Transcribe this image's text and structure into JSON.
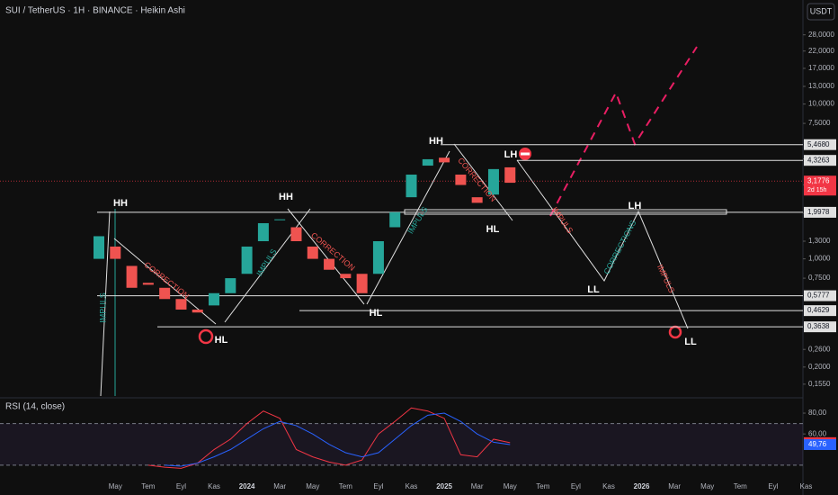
{
  "chart_data": {
    "type": "candlestick",
    "log_scale": true,
    "title": "SUI / TetherUS · 1H · BINANCE · Heikin Ashi",
    "currency_button": "USDT",
    "categories": [
      null,
      "May",
      null,
      "Tem",
      null,
      "Eyl",
      null,
      "Kas",
      null,
      "2024",
      null,
      "Mar",
      null,
      "May",
      null,
      "Tem",
      null,
      "Eyl",
      null,
      "Kas",
      null,
      "2025",
      null,
      "Mar",
      null,
      "May",
      null,
      "Tem",
      null,
      "Eyl",
      null,
      "Kas",
      null,
      "2026",
      null,
      "Mar",
      null,
      "May",
      null,
      "Tem",
      null,
      "Eyl",
      null,
      "Kas"
    ],
    "open": [
      1.0,
      1.2,
      0.9,
      0.7,
      0.65,
      0.55,
      0.47,
      0.5,
      0.6,
      0.8,
      1.3,
      1.8,
      1.6,
      1.2,
      1.0,
      0.8,
      0.8,
      0.8,
      1.6,
      2.5,
      4.0,
      4.5,
      3.5,
      2.5,
      2.6,
      3.9,
      null,
      null,
      null,
      null,
      null,
      null,
      null,
      null,
      null,
      null,
      null,
      null,
      null,
      null,
      null,
      null,
      null,
      null
    ],
    "close": [
      1.4,
      1.0,
      0.65,
      0.68,
      0.55,
      0.47,
      0.45,
      0.6,
      0.75,
      1.2,
      1.7,
      1.8,
      1.3,
      1.0,
      0.85,
      0.75,
      0.6,
      1.3,
      2.0,
      3.5,
      4.4,
      4.2,
      3.0,
      2.3,
      3.8,
      3.1,
      null,
      null,
      null,
      null,
      null,
      null,
      null,
      null,
      null,
      null,
      null,
      null,
      null,
      null,
      null,
      null,
      null,
      null
    ],
    "up_color": "#26a69a",
    "down_color": "#ef5350",
    "ylim": [
      0.13,
      47
    ],
    "yticks": [
      {
        "value": 28,
        "label": "28,0000"
      },
      {
        "value": 22,
        "label": "22,0000"
      },
      {
        "value": 17,
        "label": "17,0000"
      },
      {
        "value": 13,
        "label": "13,0000"
      },
      {
        "value": 10,
        "label": "10,0000"
      },
      {
        "value": 7.5,
        "label": "7,5000"
      },
      {
        "value": 4.4147,
        "label": "4,4147"
      },
      {
        "value": 3.0092,
        "label": "3,0092"
      },
      {
        "value": 1.9719,
        "label": "1,9719"
      },
      {
        "value": 1.3,
        "label": "1,3000"
      },
      {
        "value": 1,
        "label": "1,0000"
      },
      {
        "value": 0.75,
        "label": "0,7500"
      },
      {
        "value": 0.26,
        "label": "0,2600"
      },
      {
        "value": 0.2,
        "label": "0,2000"
      },
      {
        "value": 0.155,
        "label": "0,1550"
      }
    ],
    "levels": [
      {
        "value": 5.468,
        "label": "5,4680"
      },
      {
        "value": 4.3263,
        "label": "4,3263"
      },
      {
        "value": 1.9978,
        "label": "1,9978"
      },
      {
        "value": 0.5777,
        "label": "0,5777"
      },
      {
        "value": 0.4629,
        "label": "0,4629"
      },
      {
        "value": 0.3638,
        "label": "0,3638"
      }
    ],
    "last_price": {
      "value": 3.1776,
      "label": "3,1776",
      "countdown": "2d 15h",
      "color": "#f23645"
    },
    "annotations": [
      "HH",
      "HL",
      "HH",
      "HL",
      "HH",
      "LH",
      "HL",
      "LL",
      "LH",
      "LL",
      "IMPULS",
      "CORRECTION",
      "IMPULS",
      "CORRECTION",
      "IMPULS",
      "CORRECTION",
      "IMPULS",
      "CORRECTIONS",
      "IMPULS"
    ],
    "rsi": {
      "title": "RSI (14, close)",
      "ylim": [
        10,
        93
      ],
      "yticks": [
        {
          "value": 80,
          "label": "80,00"
        },
        {
          "value": 60,
          "label": "60,00"
        }
      ],
      "bands": [
        70,
        30
      ],
      "series": [
        {
          "name": "RSI",
          "color": "#f23645",
          "values": [
            null,
            null,
            null,
            30,
            28,
            27,
            32,
            45,
            55,
            70,
            82,
            75,
            45,
            38,
            33,
            30,
            35,
            60,
            72,
            85,
            82,
            75,
            40,
            38,
            55,
            51.63,
            null,
            null,
            null,
            null,
            null,
            null,
            null,
            null,
            null,
            null,
            null,
            null,
            null,
            null,
            null,
            null,
            null,
            null
          ],
          "value_labels_last": "51,63"
        },
        {
          "name": "MA",
          "color": "#2962ff",
          "values": [
            null,
            null,
            null,
            null,
            30,
            29,
            32,
            38,
            45,
            55,
            65,
            72,
            68,
            60,
            50,
            42,
            38,
            42,
            55,
            68,
            78,
            80,
            72,
            60,
            52,
            49.76,
            null,
            null,
            null,
            null,
            null,
            null,
            null,
            null,
            null,
            null,
            null,
            null,
            null,
            null,
            null,
            null,
            null,
            null
          ],
          "value_labels_last": "49,76"
        }
      ]
    }
  }
}
